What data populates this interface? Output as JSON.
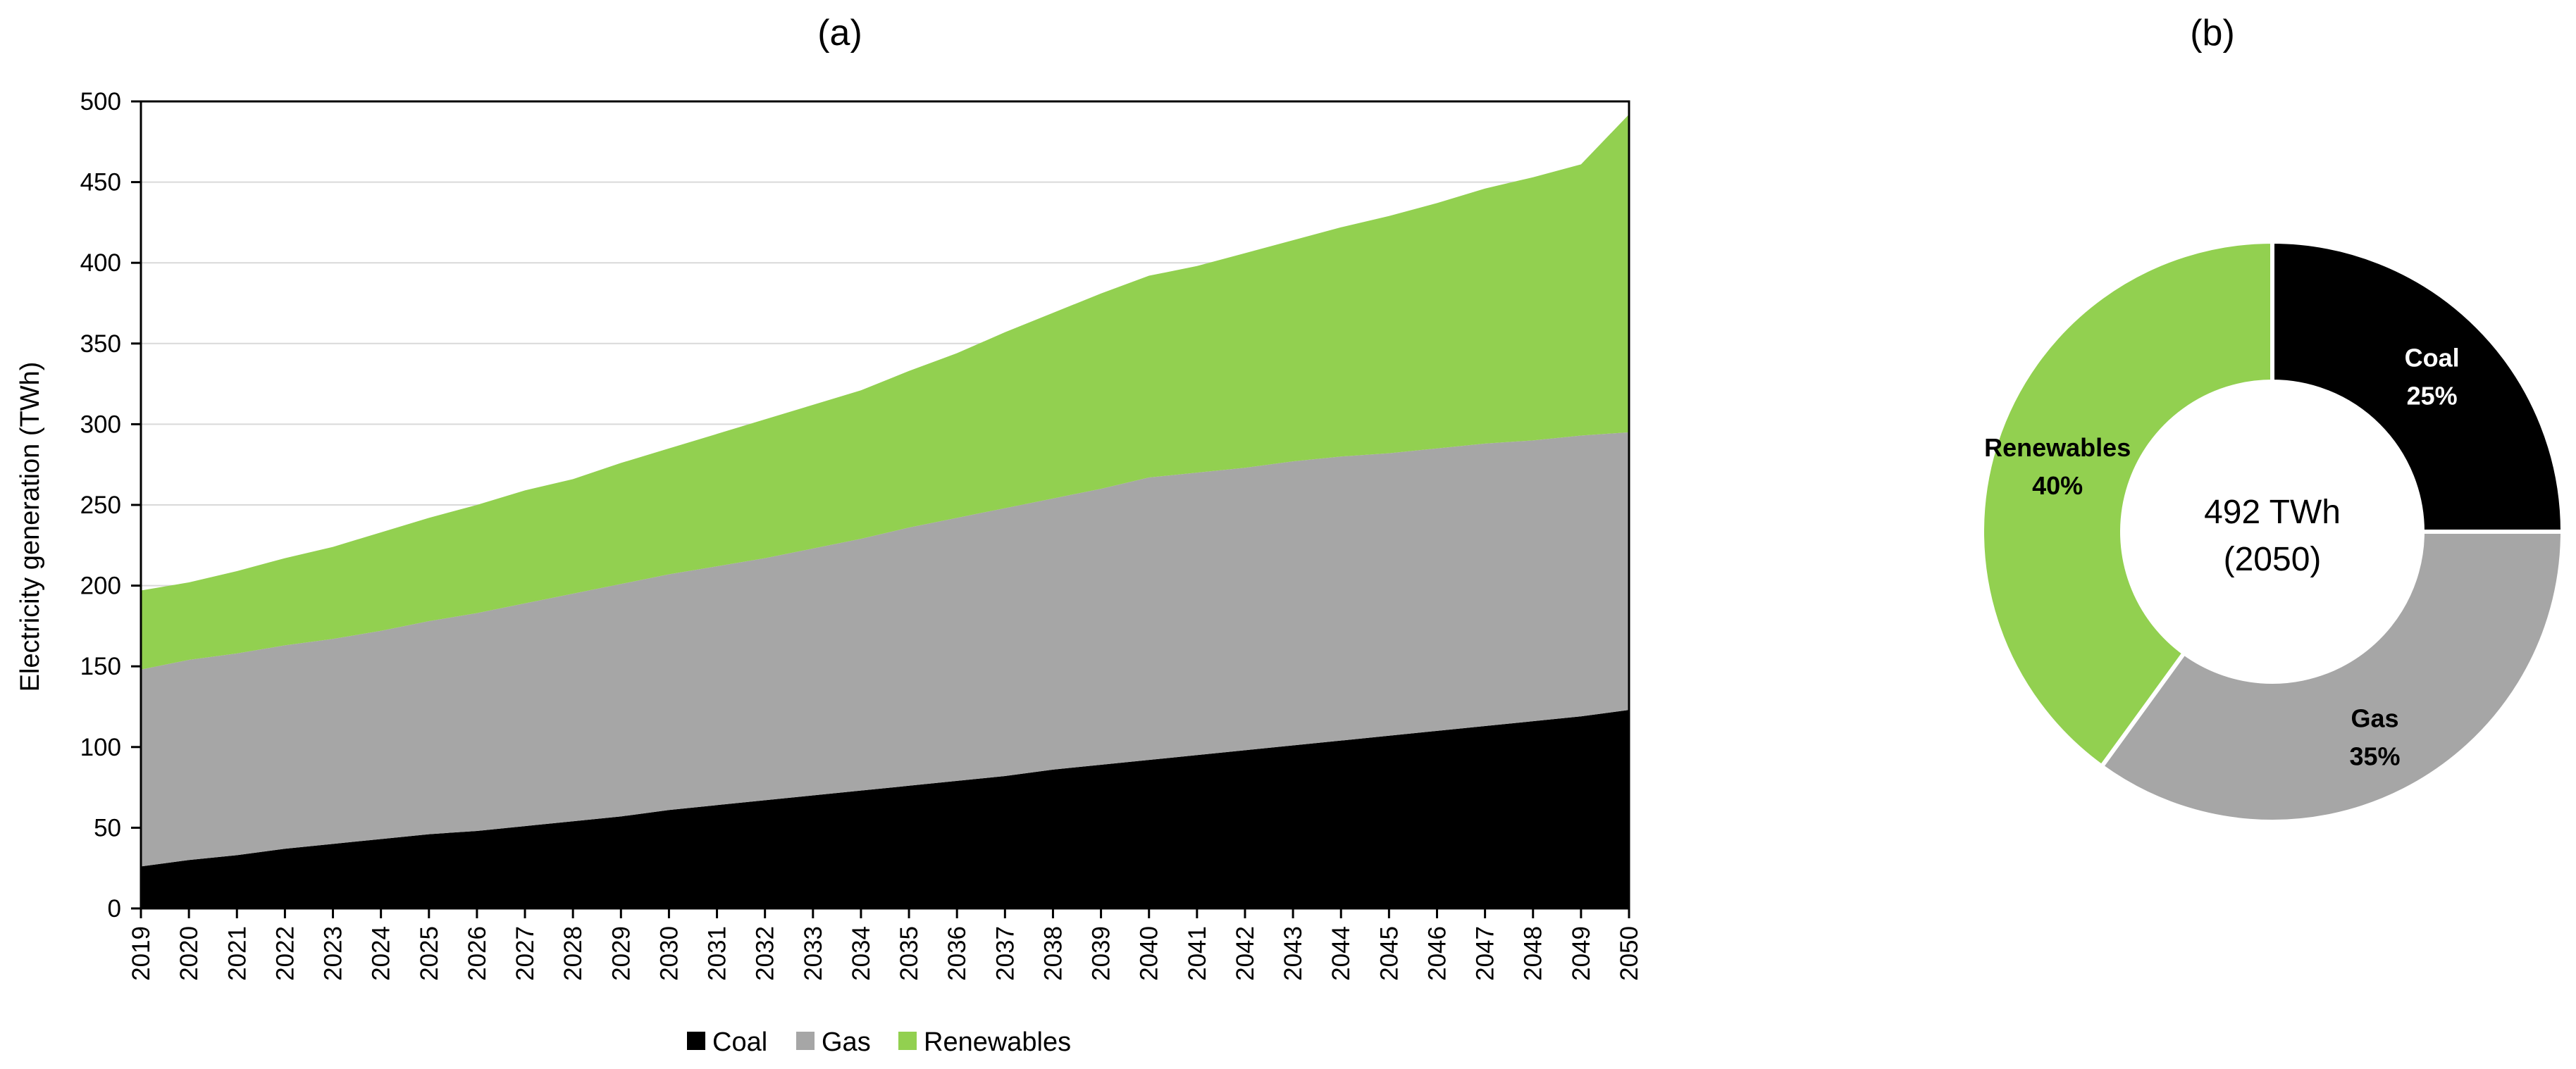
{
  "chart_data": [
    {
      "type": "area",
      "panel": "(a)",
      "stacked": true,
      "ylabel": "Electricity generation (TWh)",
      "xlabel": "",
      "ylim": [
        0,
        500
      ],
      "yticks": [
        0,
        50,
        100,
        150,
        200,
        250,
        300,
        350,
        400,
        450,
        500
      ],
      "grid": true,
      "legend_position": "bottom",
      "x": [
        "2019",
        "2020",
        "2021",
        "2022",
        "2023",
        "2024",
        "2025",
        "2026",
        "2027",
        "2028",
        "2029",
        "2030",
        "2031",
        "2032",
        "2033",
        "2034",
        "2035",
        "2036",
        "2037",
        "2038",
        "2039",
        "2040",
        "2041",
        "2042",
        "2043",
        "2044",
        "2045",
        "2046",
        "2047",
        "2048",
        "2049",
        "2050"
      ],
      "series": [
        {
          "name": "Coal",
          "color": "#000000",
          "values": [
            26,
            30,
            33,
            37,
            40,
            43,
            46,
            48,
            51,
            54,
            57,
            61,
            64,
            67,
            70,
            73,
            76,
            79,
            82,
            86,
            89,
            92,
            95,
            98,
            101,
            104,
            107,
            110,
            113,
            116,
            119,
            123
          ]
        },
        {
          "name": "Gas",
          "color": "#a6a6a6",
          "values": [
            122,
            124,
            125,
            126,
            127,
            129,
            132,
            135,
            138,
            141,
            144,
            146,
            148,
            150,
            153,
            156,
            160,
            163,
            166,
            168,
            171,
            175,
            175,
            175,
            176,
            176,
            175,
            175,
            175,
            174,
            174,
            172
          ]
        },
        {
          "name": "Renewables",
          "color": "#92d050",
          "values": [
            49,
            48,
            51,
            54,
            57,
            61,
            64,
            67,
            70,
            71,
            75,
            78,
            82,
            86,
            89,
            92,
            97,
            102,
            109,
            115,
            121,
            125,
            128,
            133,
            137,
            142,
            147,
            152,
            158,
            163,
            168,
            197
          ]
        }
      ]
    },
    {
      "type": "pie",
      "panel": "(b)",
      "donut": true,
      "center_value": "492 TWh",
      "center_year": "(2050)",
      "slices": [
        {
          "name": "Coal",
          "percent": 25,
          "label": "25%",
          "color": "#000000",
          "text_color": "#ffffff"
        },
        {
          "name": "Gas",
          "percent": 35,
          "label": "35%",
          "color": "#a6a6a6",
          "text_color": "#000000"
        },
        {
          "name": "Renewables",
          "percent": 40,
          "label": "40%",
          "color": "#92d050",
          "text_color": "#000000"
        }
      ]
    }
  ]
}
